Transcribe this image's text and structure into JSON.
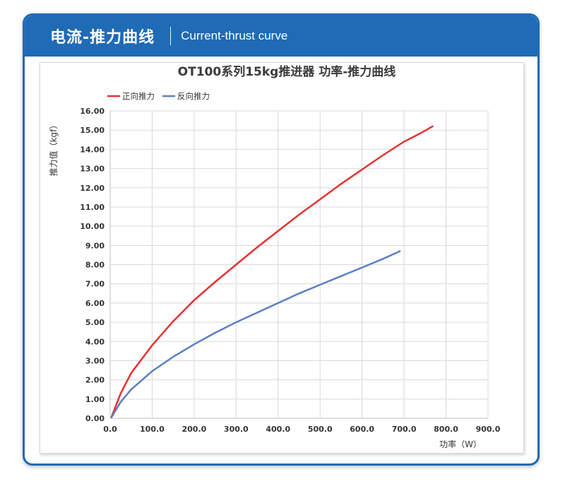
{
  "header": {
    "title": "电流-推力曲线",
    "subtitle": "Current-thrust curve"
  },
  "colors": {
    "header_bg": "#1f6bb5",
    "forward": "#e83030",
    "reverse": "#5b7fc4",
    "grid": "#d9d9d9"
  },
  "chart_data": {
    "type": "line",
    "title": "OT100系列15kg推进器 功率-推力曲线",
    "xlabel": "功率（W）",
    "ylabel": "推力值（kgf）",
    "xlim": [
      0,
      900
    ],
    "ylim": [
      0,
      16
    ],
    "xticks": [
      "0.0",
      "100.0",
      "200.0",
      "300.0",
      "400.0",
      "500.0",
      "600.0",
      "700.0",
      "800.0",
      "900.0"
    ],
    "yticks": [
      "0.00",
      "1.00",
      "2.00",
      "3.00",
      "4.00",
      "5.00",
      "6.00",
      "7.00",
      "8.00",
      "9.00",
      "10.00",
      "11.00",
      "12.00",
      "13.00",
      "14.00",
      "15.00",
      "16.00"
    ],
    "grid": true,
    "legend_position": "top-left",
    "series": [
      {
        "name": "正向推力",
        "color": "#e83030",
        "x": [
          3,
          10,
          25,
          50,
          100,
          150,
          200,
          250,
          300,
          350,
          400,
          450,
          500,
          550,
          600,
          650,
          700,
          740,
          768
        ],
        "y": [
          0.05,
          0.45,
          1.3,
          2.35,
          3.8,
          5.05,
          6.15,
          7.1,
          8.0,
          8.9,
          9.75,
          10.6,
          11.4,
          12.2,
          12.95,
          13.7,
          14.4,
          14.85,
          15.2
        ]
      },
      {
        "name": "反向推力",
        "color": "#5b7fc4",
        "x": [
          3,
          10,
          25,
          50,
          100,
          150,
          200,
          250,
          300,
          350,
          400,
          450,
          500,
          550,
          600,
          650,
          690
        ],
        "y": [
          0.05,
          0.3,
          0.85,
          1.5,
          2.45,
          3.2,
          3.85,
          4.45,
          5.0,
          5.5,
          6.0,
          6.5,
          6.95,
          7.4,
          7.85,
          8.3,
          8.7
        ]
      }
    ]
  }
}
